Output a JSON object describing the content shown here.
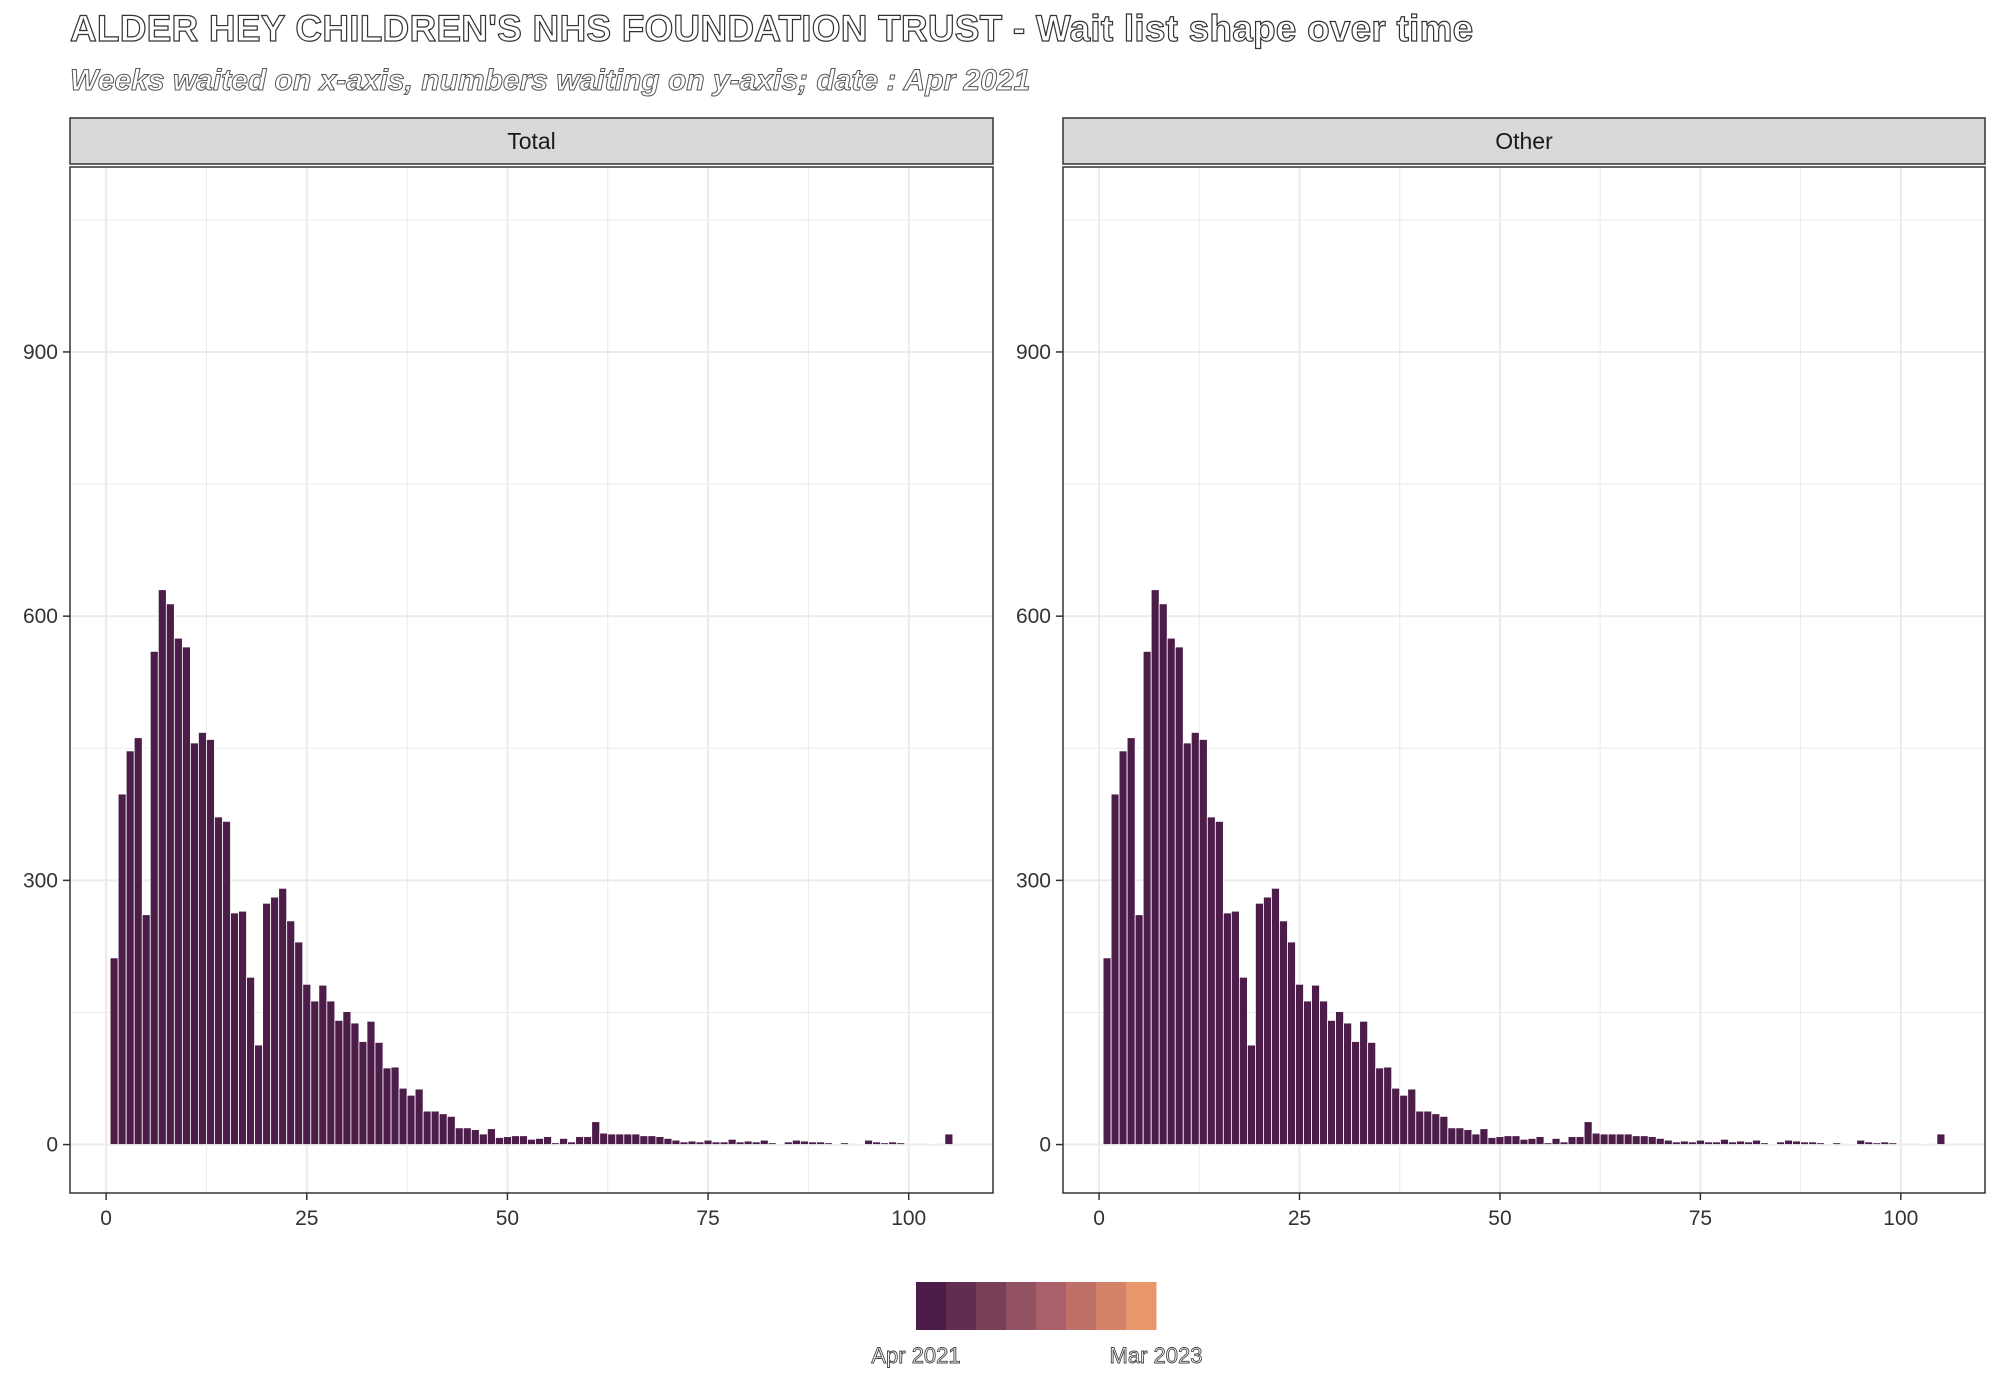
{
  "title": "ALDER HEY CHILDREN'S NHS FOUNDATION TRUST - Wait list shape over time",
  "subtitle": "Weeks waited on x-axis, numbers waiting on y-axis; date : Apr 2021",
  "colors": {
    "bar": "#4b1d48",
    "bar_outline": "#ffffff",
    "strip_fill": "#d9d9d9",
    "grid": "#ebebeb",
    "panel_border": "#333333",
    "legend_ramp": [
      "#4b1d48",
      "#622e50",
      "#7a3f58",
      "#935262",
      "#a9606a",
      "#bf7068",
      "#d4836a",
      "#e8966c"
    ]
  },
  "legend": {
    "position": "bottom",
    "start_label": "Apr 2021",
    "end_label": "Mar 2023"
  },
  "chart_data": [
    {
      "type": "bar",
      "facet": "Total",
      "xlabel": "",
      "ylabel": "",
      "xlim": [
        -4.5,
        110.5
      ],
      "ylim": [
        -55,
        1110
      ],
      "x_ticks": [
        0,
        25,
        50,
        75,
        100
      ],
      "y_ticks": [
        0,
        300,
        600,
        900
      ],
      "grid": true,
      "x": [
        1,
        2,
        3,
        4,
        5,
        6,
        7,
        8,
        9,
        10,
        11,
        12,
        13,
        14,
        15,
        16,
        17,
        18,
        19,
        20,
        21,
        22,
        23,
        24,
        25,
        26,
        27,
        28,
        29,
        30,
        31,
        32,
        33,
        34,
        35,
        36,
        37,
        38,
        39,
        40,
        41,
        42,
        43,
        44,
        45,
        46,
        47,
        48,
        49,
        50,
        51,
        52,
        53,
        54,
        55,
        56,
        57,
        58,
        59,
        60,
        61,
        62,
        63,
        64,
        65,
        66,
        67,
        68,
        69,
        70,
        71,
        72,
        73,
        74,
        75,
        76,
        77,
        78,
        79,
        80,
        81,
        82,
        83,
        84,
        85,
        86,
        87,
        88,
        89,
        90,
        91,
        92,
        93,
        94,
        95,
        96,
        97,
        98,
        99,
        100,
        101,
        102,
        103,
        104,
        105
      ],
      "values": [
        212,
        398,
        447,
        462,
        261,
        560,
        630,
        614,
        575,
        565,
        456,
        468,
        460,
        372,
        367,
        263,
        265,
        190,
        113,
        274,
        281,
        291,
        254,
        230,
        182,
        163,
        181,
        163,
        141,
        151,
        138,
        117,
        140,
        116,
        87,
        88,
        64,
        56,
        63,
        38,
        38,
        35,
        32,
        19,
        19,
        17,
        12,
        18,
        8,
        9,
        10,
        10,
        6,
        7,
        9,
        2,
        7,
        3,
        9,
        9,
        26,
        13,
        12,
        12,
        12,
        12,
        10,
        10,
        9,
        7,
        5,
        3,
        4,
        3,
        5,
        3,
        3,
        6,
        3,
        4,
        3,
        5,
        2,
        1,
        3,
        5,
        4,
        3,
        3,
        2,
        1,
        2,
        0,
        1,
        5,
        3,
        2,
        3,
        2,
        0,
        0,
        0,
        1,
        0,
        12
      ]
    },
    {
      "type": "bar",
      "facet": "Other",
      "xlabel": "",
      "ylabel": "",
      "xlim": [
        -4.5,
        110.5
      ],
      "ylim": [
        -55,
        1110
      ],
      "x_ticks": [
        0,
        25,
        50,
        75,
        100
      ],
      "y_ticks": [
        0,
        300,
        600,
        900
      ],
      "grid": true,
      "x": [
        1,
        2,
        3,
        4,
        5,
        6,
        7,
        8,
        9,
        10,
        11,
        12,
        13,
        14,
        15,
        16,
        17,
        18,
        19,
        20,
        21,
        22,
        23,
        24,
        25,
        26,
        27,
        28,
        29,
        30,
        31,
        32,
        33,
        34,
        35,
        36,
        37,
        38,
        39,
        40,
        41,
        42,
        43,
        44,
        45,
        46,
        47,
        48,
        49,
        50,
        51,
        52,
        53,
        54,
        55,
        56,
        57,
        58,
        59,
        60,
        61,
        62,
        63,
        64,
        65,
        66,
        67,
        68,
        69,
        70,
        71,
        72,
        73,
        74,
        75,
        76,
        77,
        78,
        79,
        80,
        81,
        82,
        83,
        84,
        85,
        86,
        87,
        88,
        89,
        90,
        91,
        92,
        93,
        94,
        95,
        96,
        97,
        98,
        99,
        100,
        101,
        102,
        103,
        104,
        105
      ],
      "values": [
        212,
        398,
        447,
        462,
        261,
        560,
        630,
        614,
        575,
        565,
        456,
        468,
        460,
        372,
        367,
        263,
        265,
        190,
        113,
        274,
        281,
        291,
        254,
        230,
        182,
        163,
        181,
        163,
        141,
        151,
        138,
        117,
        140,
        116,
        87,
        88,
        64,
        56,
        63,
        38,
        38,
        35,
        32,
        19,
        19,
        17,
        12,
        18,
        8,
        9,
        10,
        10,
        6,
        7,
        9,
        2,
        7,
        3,
        9,
        9,
        26,
        13,
        12,
        12,
        12,
        12,
        10,
        10,
        9,
        7,
        5,
        3,
        4,
        3,
        5,
        3,
        3,
        6,
        3,
        4,
        3,
        5,
        2,
        1,
        3,
        5,
        4,
        3,
        3,
        2,
        1,
        2,
        0,
        1,
        5,
        3,
        2,
        3,
        2,
        0,
        0,
        0,
        1,
        0,
        12
      ]
    }
  ]
}
